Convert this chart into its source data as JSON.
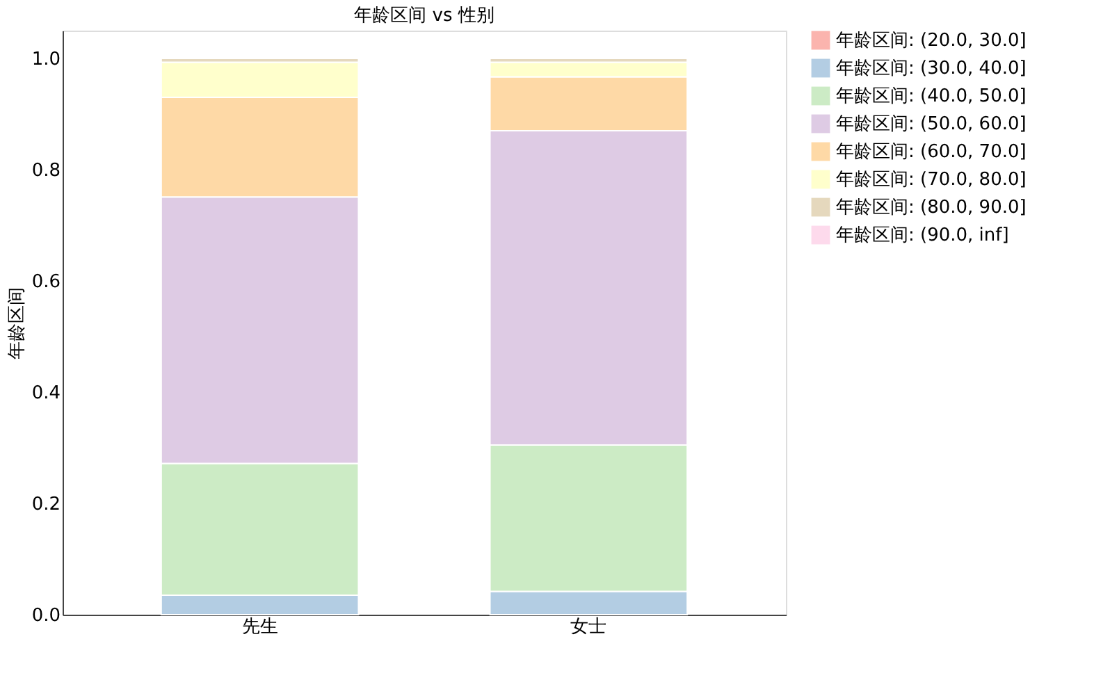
{
  "chart_data": {
    "type": "bar",
    "title": "年龄区间 vs 性别",
    "ylabel": "年龄区间",
    "categories": [
      "先生",
      "女士"
    ],
    "stacked": true,
    "series": [
      {
        "name": "年龄区间: (20.0, 30.0]",
        "color": "#fbb4ae",
        "values": [
          null,
          null
        ]
      },
      {
        "name": "年龄区间: (30.0, 40.0]",
        "color": "#b3cde3",
        "values": [
          0.035,
          0.042
        ]
      },
      {
        "name": "年龄区间: (40.0, 50.0]",
        "color": "#ccebc5",
        "values": [
          0.237,
          0.263
        ]
      },
      {
        "name": "年龄区间: (50.0, 60.0]",
        "color": "#decbe4",
        "values": [
          0.479,
          0.565
        ]
      },
      {
        "name": "年龄区间: (60.0, 70.0]",
        "color": "#fed9a6",
        "values": [
          0.179,
          0.097
        ]
      },
      {
        "name": "年龄区间: (70.0, 80.0]",
        "color": "#ffffcc",
        "values": [
          0.063,
          0.026
        ]
      },
      {
        "name": "年龄区间: (80.0, 90.0]",
        "color": "#e5d8bd",
        "values": [
          0.007,
          0.007
        ]
      },
      {
        "name": "年龄区间: (90.0, inf]",
        "color": "#fddaec",
        "values": [
          null,
          null
        ]
      }
    ],
    "ylim": [
      0,
      1.05
    ],
    "yticks": [
      {
        "value": 0,
        "label": "0.0"
      },
      {
        "value": 0.2,
        "label": "0.2"
      },
      {
        "value": 0.4,
        "label": "0.4"
      },
      {
        "value": 0.6,
        "label": "0.6"
      },
      {
        "value": 0.8,
        "label": "0.8"
      },
      {
        "value": 1.0,
        "label": "1.0"
      }
    ],
    "grid": false,
    "legend": "right"
  }
}
